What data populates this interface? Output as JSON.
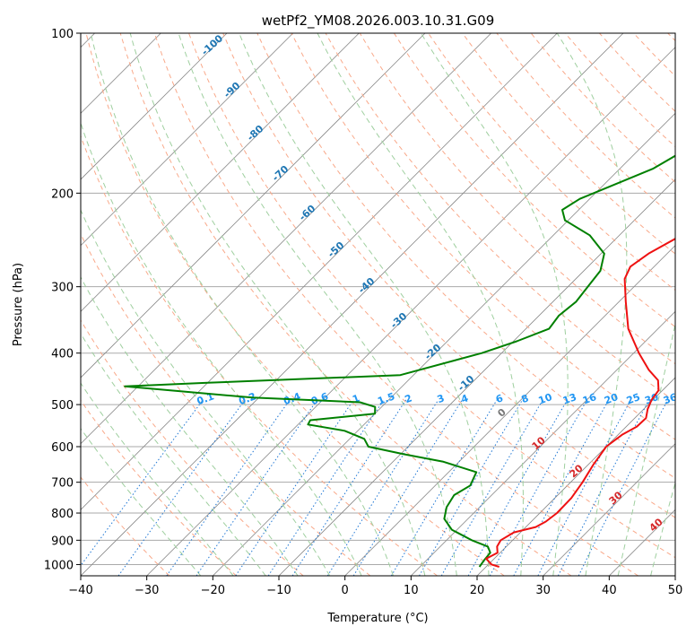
{
  "chart_data": {
    "type": "skew-t log-p",
    "title": "wetPf2_YM08.2026.003.10.31.G09",
    "xlabel": "Temperature (°C)",
    "ylabel": "Pressure (hPa)",
    "xlim": [
      -40,
      50
    ],
    "ylim_hpa": [
      1050,
      100
    ],
    "x_ticks": [
      -40,
      -30,
      -20,
      -10,
      0,
      10,
      20,
      30,
      40,
      50
    ],
    "y_ticks": [
      1000,
      900,
      800,
      700,
      600,
      500,
      400,
      300,
      200,
      100
    ],
    "grid": "horizontal isobars at tick pressures",
    "temperature_profile": {
      "name": "Temperature",
      "color": "#ee1111",
      "points": [
        [
          1010,
          22
        ],
        [
          1000,
          20.5
        ],
        [
          975,
          18.8
        ],
        [
          950,
          19.6
        ],
        [
          925,
          18.6
        ],
        [
          900,
          18.2
        ],
        [
          870,
          19.0
        ],
        [
          850,
          21.5
        ],
        [
          830,
          22.2
        ],
        [
          800,
          22.6
        ],
        [
          750,
          22.5
        ],
        [
          700,
          21.8
        ],
        [
          650,
          20.8
        ],
        [
          600,
          20.0
        ],
        [
          570,
          20.6
        ],
        [
          550,
          21.6
        ],
        [
          530,
          21.7
        ],
        [
          510,
          20.6
        ],
        [
          490,
          19.8
        ],
        [
          470,
          19.4
        ],
        [
          450,
          17.8
        ],
        [
          430,
          14.8
        ],
        [
          400,
          10.8
        ],
        [
          360,
          5.5
        ],
        [
          320,
          1.0
        ],
        [
          290,
          -2.6
        ],
        [
          275,
          -3.6
        ],
        [
          260,
          -2.8
        ],
        [
          240,
          -0.6
        ],
        [
          220,
          0.2
        ],
        [
          200,
          -0.4
        ],
        [
          180,
          -1.8
        ],
        [
          160,
          -3.8
        ],
        [
          140,
          -6.3
        ],
        [
          125,
          -9.3
        ],
        [
          118,
          -10.8
        ],
        [
          113,
          -10.0
        ],
        [
          108,
          -8.0
        ],
        [
          100,
          -6.0
        ]
      ]
    },
    "dewpoint_profile": {
      "name": "Dewpoint",
      "color": "#008000",
      "points": [
        [
          1010,
          19
        ],
        [
          980,
          18.7
        ],
        [
          950,
          18.5
        ],
        [
          925,
          17.2
        ],
        [
          900,
          13.8
        ],
        [
          860,
          9.2
        ],
        [
          820,
          6.4
        ],
        [
          780,
          5.0
        ],
        [
          740,
          4.3
        ],
        [
          710,
          5.3
        ],
        [
          670,
          4.2
        ],
        [
          640,
          -2.5
        ],
        [
          620,
          -9.5
        ],
        [
          600,
          -16.0
        ],
        [
          580,
          -17.8
        ],
        [
          560,
          -22.0
        ],
        [
          545,
          -28.5
        ],
        [
          535,
          -28.8
        ],
        [
          520,
          -20.0
        ],
        [
          505,
          -21.0
        ],
        [
          495,
          -24.0
        ],
        [
          485,
          -41.0
        ],
        [
          462,
          -62.0
        ],
        [
          455,
          -50.0
        ],
        [
          440,
          -22.0
        ],
        [
          400,
          -13.0
        ],
        [
          380,
          -9.5
        ],
        [
          360,
          -6.5
        ],
        [
          340,
          -7.0
        ],
        [
          320,
          -6.5
        ],
        [
          300,
          -7.0
        ],
        [
          280,
          -7.5
        ],
        [
          260,
          -9.5
        ],
        [
          240,
          -14.5
        ],
        [
          225,
          -20.5
        ],
        [
          215,
          -22.5
        ],
        [
          205,
          -21.5
        ],
        [
          195,
          -19.0
        ],
        [
          180,
          -15.0
        ],
        [
          160,
          -12.0
        ],
        [
          145,
          -10.5
        ],
        [
          130,
          -9.8
        ],
        [
          120,
          -10.5
        ],
        [
          110,
          -11.5
        ],
        [
          105,
          -11.8
        ],
        [
          100,
          -12.0
        ]
      ]
    },
    "mixing_ratio_labels": [
      "0.1",
      "0.2",
      "0.4",
      "0.6",
      "1",
      "1.5",
      "2",
      "3",
      "4",
      "6",
      "8",
      "10",
      "13",
      "16",
      "20",
      "25",
      "30",
      "36"
    ],
    "dry_adiabat_labels": [
      "-100",
      "-90",
      "-80",
      "-70",
      "-60",
      "-50",
      "-40",
      "-30",
      "-20",
      "-10",
      "0",
      "10",
      "20",
      "30",
      "40"
    ],
    "colors": {
      "isotherm": "#888888",
      "isobar": "#aaaaaa",
      "dry_adiabat": "#f9a98a",
      "moist_adiabat": "#9fcf9f",
      "mixing_ratio": "#1f77d4",
      "label_blue": "#1f77b4",
      "label_red": "#d62728",
      "label_gray": "#777777",
      "mixing_label": "#2196f3"
    }
  }
}
